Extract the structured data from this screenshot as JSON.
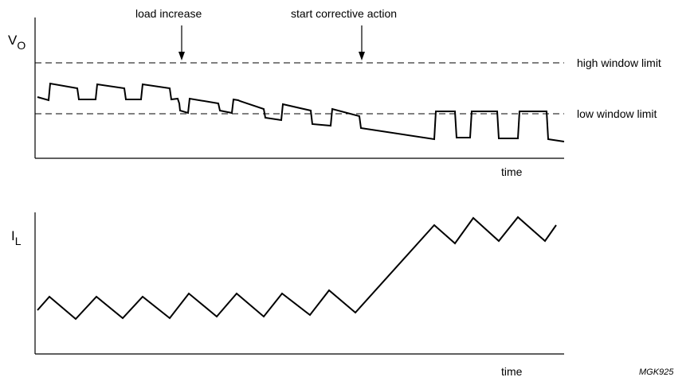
{
  "top_plot": {
    "y_symbol": "V",
    "y_subscript": "O",
    "x_label": "time",
    "high_limit_label": "high window limit",
    "low_limit_label": "low window limit"
  },
  "annotations": {
    "load_increase": "load increase",
    "start_corrective_action": "start corrective action"
  },
  "bottom_plot": {
    "y_symbol": "I",
    "y_subscript": "L",
    "x_label": "time"
  },
  "figure_code": "MGK925"
}
